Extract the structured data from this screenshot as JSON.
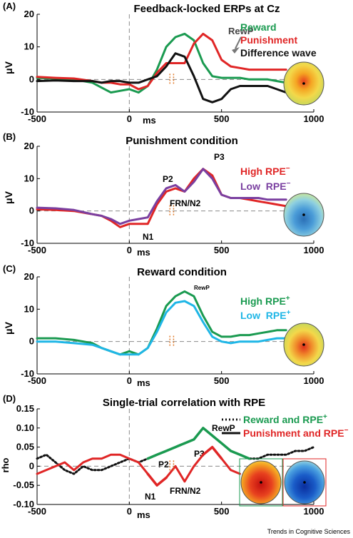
{
  "figure": {
    "credit": "Trends in Cognitive Sciences"
  },
  "panels": [
    {
      "label": "(A)",
      "title": "Feedback-locked ERPs at Cz",
      "ylabel": "μV",
      "xlabel": "ms",
      "xticks": [
        "-500",
        "0",
        "500",
        "1000"
      ],
      "yticks": [
        "20",
        "10",
        "0",
        "-10"
      ],
      "legend": [
        {
          "text": "Reward",
          "color": "#1a9a50"
        },
        {
          "text": "Punishment",
          "color": "#e02626"
        },
        {
          "text": "Difference wave",
          "color": "#111111"
        }
      ],
      "annotations": [
        "RewP"
      ]
    },
    {
      "label": "(B)",
      "title": "Punishment condition",
      "ylabel": "μV",
      "xlabel": "ms",
      "xticks": [
        "-500",
        "0",
        "500",
        "1000"
      ],
      "yticks": [
        "20",
        "10",
        "0",
        "-10"
      ],
      "legend": [
        {
          "text": "High RPE",
          "sup": "−",
          "color": "#e02626"
        },
        {
          "text": "Low  RPE",
          "sup": "−",
          "color": "#7a3fa0"
        }
      ],
      "annotations": [
        "P2",
        "P3",
        "FRN/N2",
        "N1"
      ]
    },
    {
      "label": "(C)",
      "title": "Reward condition",
      "ylabel": "μV",
      "xlabel": "ms",
      "xticks": [
        "-500",
        "0",
        "500",
        "1000"
      ],
      "yticks": [
        "20",
        "10",
        "0",
        "-10"
      ],
      "legend": [
        {
          "text": "High RPE",
          "sup": "+",
          "color": "#1a9a50"
        },
        {
          "text": "Low  RPE",
          "sup": "+",
          "color": "#1fb6e6"
        }
      ],
      "annotations": [
        "RewP"
      ]
    },
    {
      "label": "(D)",
      "title": "Single-trial correlation with RPE",
      "ylabel": "rho",
      "xlabel": "ms",
      "xticks": [
        "-500",
        "0",
        "500",
        "1000"
      ],
      "yticks": [
        "0.15",
        "0.10",
        "0.05",
        "0",
        "-0.05",
        "-0.10"
      ],
      "legend": [
        {
          "text": "Reward and RPE",
          "sup": "+",
          "color": "#1a9a50",
          "style": "dotted"
        },
        {
          "text": "Punishment and RPE",
          "sup": "−",
          "color": "#e02626",
          "style": "solid"
        }
      ],
      "annotations": [
        "RewP",
        "P2",
        "P3",
        "N1",
        "FRN/N2"
      ]
    }
  ],
  "chart_data": [
    {
      "type": "line",
      "title": "Feedback-locked ERPs at Cz",
      "xlabel": "ms",
      "ylabel": "μV",
      "xlim": [
        -500,
        1000
      ],
      "ylim": [
        -10,
        20
      ],
      "series": [
        {
          "name": "Reward",
          "color": "#1a9a50",
          "dash": "solid",
          "x": [
            -500,
            -400,
            -300,
            -200,
            -150,
            -100,
            -50,
            0,
            50,
            100,
            150,
            200,
            250,
            300,
            350,
            400,
            450,
            500,
            550,
            600,
            650,
            700,
            750,
            800,
            850
          ],
          "y": [
            0.5,
            0.3,
            0,
            -1,
            -2.5,
            -4,
            -3.5,
            -3,
            -4,
            -2,
            3,
            10,
            13,
            14,
            12,
            5,
            1,
            0.5,
            0.5,
            0.5,
            0,
            0,
            0,
            -0.5,
            -1
          ]
        },
        {
          "name": "Punishment",
          "color": "#e02626",
          "dash": "solid",
          "x": [
            -500,
            -400,
            -300,
            -200,
            -150,
            -100,
            -50,
            0,
            50,
            100,
            150,
            200,
            250,
            300,
            350,
            400,
            450,
            500,
            550,
            600,
            650,
            700,
            750,
            800,
            850
          ],
          "y": [
            0.8,
            0.5,
            0.3,
            -0.5,
            -1,
            -1,
            -1.5,
            -1.5,
            -3,
            -2,
            2,
            5,
            5,
            5,
            11,
            14,
            12,
            6,
            4,
            3.5,
            3,
            3,
            3,
            3,
            3
          ]
        },
        {
          "name": "Difference wave",
          "color": "#111111",
          "dash": "solid",
          "x": [
            -500,
            -400,
            -300,
            -200,
            -150,
            -100,
            -50,
            0,
            50,
            100,
            150,
            200,
            250,
            300,
            350,
            400,
            450,
            500,
            550,
            600,
            650,
            700,
            750,
            800,
            850
          ],
          "y": [
            -0.5,
            -0.3,
            -0.5,
            -0.5,
            -1,
            -0.5,
            -0.5,
            -1,
            -1,
            0,
            1,
            4,
            8,
            7,
            1,
            -6,
            -7,
            -6,
            -3,
            -2,
            -2,
            -2,
            -2,
            -3,
            -4
          ]
        }
      ]
    },
    {
      "type": "line",
      "title": "Punishment condition",
      "xlabel": "ms",
      "ylabel": "μV",
      "xlim": [
        -500,
        1000
      ],
      "ylim": [
        -10,
        20
      ],
      "series": [
        {
          "name": "High RPE−",
          "color": "#e02626",
          "dash": "solid",
          "x": [
            -500,
            -400,
            -300,
            -200,
            -150,
            -100,
            -50,
            0,
            50,
            100,
            150,
            200,
            250,
            300,
            350,
            400,
            450,
            500,
            550,
            600,
            650,
            700,
            750,
            800,
            850
          ],
          "y": [
            0.5,
            0.3,
            0,
            -1,
            -1.5,
            -3,
            -5,
            -4,
            -4,
            -4,
            2,
            6,
            7,
            6,
            10,
            13,
            11,
            5,
            4,
            4,
            3.5,
            3,
            2.5,
            2,
            1.5
          ]
        },
        {
          "name": "Low RPE−",
          "color": "#7a3fa0",
          "dash": "solid",
          "x": [
            -500,
            -400,
            -300,
            -200,
            -150,
            -100,
            -50,
            0,
            50,
            100,
            150,
            200,
            250,
            300,
            350,
            400,
            450,
            500,
            550,
            600,
            650,
            700,
            750,
            800,
            850
          ],
          "y": [
            1,
            0.8,
            0.3,
            -1,
            -1.5,
            -2.5,
            -4,
            -3,
            -2.5,
            -2,
            3,
            7,
            8,
            6,
            9,
            13,
            10,
            5,
            4,
            4,
            4,
            4,
            3.5,
            3.5,
            3.5
          ]
        }
      ]
    },
    {
      "type": "line",
      "title": "Reward condition",
      "xlabel": "ms",
      "ylabel": "μV",
      "xlim": [
        -500,
        1000
      ],
      "ylim": [
        -10,
        20
      ],
      "series": [
        {
          "name": "High RPE+",
          "color": "#1a9a50",
          "dash": "solid",
          "x": [
            -500,
            -400,
            -300,
            -200,
            -150,
            -100,
            -50,
            0,
            50,
            100,
            150,
            200,
            250,
            300,
            350,
            400,
            450,
            500,
            550,
            600,
            650,
            700,
            750,
            800,
            850
          ],
          "y": [
            1,
            1,
            0.5,
            -0.5,
            -2,
            -3,
            -4,
            -3,
            -4,
            -2,
            4,
            11,
            14,
            15.5,
            14,
            8,
            3,
            1.5,
            1.5,
            2,
            2,
            2.5,
            3,
            3.5,
            3.5
          ]
        },
        {
          "name": "Low RPE+",
          "color": "#1fb6e6",
          "dash": "solid",
          "x": [
            -500,
            -400,
            -300,
            -200,
            -150,
            -100,
            -50,
            0,
            50,
            100,
            150,
            200,
            250,
            300,
            350,
            400,
            450,
            500,
            550,
            600,
            650,
            700,
            750,
            800,
            850
          ],
          "y": [
            0,
            0,
            -0.5,
            -1,
            -2,
            -3,
            -4,
            -4,
            -4,
            -2,
            3,
            9,
            12,
            12.5,
            11,
            6,
            1.5,
            0,
            -0.5,
            0,
            0,
            0,
            0.5,
            1,
            1
          ]
        }
      ]
    },
    {
      "type": "line",
      "title": "Single-trial correlation with RPE",
      "xlabel": "ms",
      "ylabel": "rho",
      "xlim": [
        -500,
        1000
      ],
      "ylim": [
        -0.1,
        0.15
      ],
      "series": [
        {
          "name": "Reward and RPE+",
          "color": "#1a9a50",
          "dash": "dotted",
          "x": [
            -500,
            -450,
            -400,
            -350,
            -300,
            -250,
            -200,
            -150,
            -100,
            -50,
            0,
            50,
            100,
            150,
            200,
            250,
            300,
            350,
            400,
            450,
            500,
            550,
            600,
            650,
            700,
            750,
            800,
            850,
            900,
            950,
            1000
          ],
          "y": [
            0.02,
            0.03,
            0.01,
            -0.01,
            -0.02,
            0.0,
            -0.01,
            -0.01,
            0.0,
            0.01,
            0.02,
            0.01,
            0.02,
            0.03,
            0.04,
            0.05,
            0.06,
            0.07,
            0.1,
            0.08,
            0.06,
            0.04,
            0.03,
            0.02,
            0.02,
            0.03,
            0.03,
            0.03,
            0.04,
            0.04,
            0.05
          ]
        },
        {
          "name": "Punishment and RPE−",
          "color": "#e02626",
          "dash": "solid",
          "x": [
            -500,
            -450,
            -400,
            -350,
            -300,
            -250,
            -200,
            -150,
            -100,
            -50,
            0,
            50,
            100,
            150,
            200,
            250,
            300,
            350,
            400,
            450,
            500,
            550,
            600
          ],
          "y": [
            -0.02,
            -0.01,
            0.0,
            0.01,
            -0.01,
            0.01,
            0.02,
            0.02,
            0.03,
            0.03,
            0.02,
            0.01,
            -0.02,
            -0.05,
            -0.03,
            0.0,
            -0.04,
            0.0,
            0.03,
            0.05,
            0.02,
            -0.01,
            -0.02
          ]
        }
      ]
    }
  ]
}
